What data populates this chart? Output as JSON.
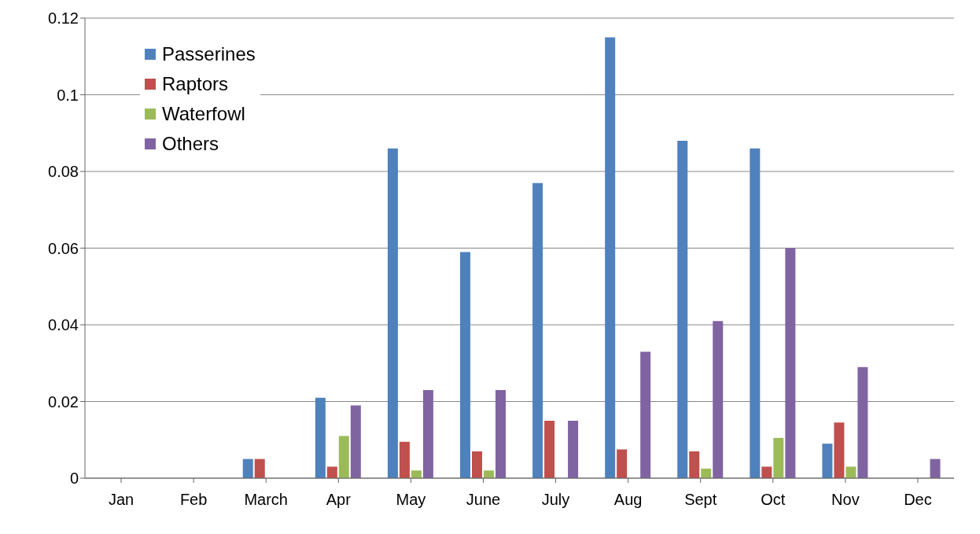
{
  "chart_data": {
    "type": "bar",
    "categories": [
      "Jan",
      "Feb",
      "March",
      "Apr",
      "May",
      "June",
      "July",
      "Aug",
      "Sept",
      "Oct",
      "Nov",
      "Dec"
    ],
    "series": [
      {
        "name": "Passerines",
        "color": "#4f81bd",
        "values": [
          0,
          0,
          0.005,
          0.021,
          0.086,
          0.059,
          0.077,
          0.115,
          0.088,
          0.086,
          0.009,
          0
        ]
      },
      {
        "name": "Raptors",
        "color": "#c0504d",
        "values": [
          0,
          0,
          0.005,
          0.003,
          0.0095,
          0.007,
          0.015,
          0.0075,
          0.007,
          0.003,
          0.0145,
          0
        ]
      },
      {
        "name": "Waterfowl",
        "color": "#9bbb59",
        "values": [
          0,
          0,
          0,
          0.011,
          0.002,
          0.002,
          0,
          0,
          0.0025,
          0.0105,
          0.003,
          0
        ]
      },
      {
        "name": "Others",
        "color": "#8064a2",
        "values": [
          0,
          0,
          0,
          0.019,
          0.023,
          0.023,
          0.015,
          0.033,
          0.041,
          0.06,
          0.029,
          0.005
        ]
      }
    ],
    "ylim": [
      0,
      0.12
    ],
    "yticks": [
      0,
      0.02,
      0.04,
      0.06,
      0.08,
      0.1,
      0.12
    ],
    "grid": "y",
    "legend": "top left"
  }
}
